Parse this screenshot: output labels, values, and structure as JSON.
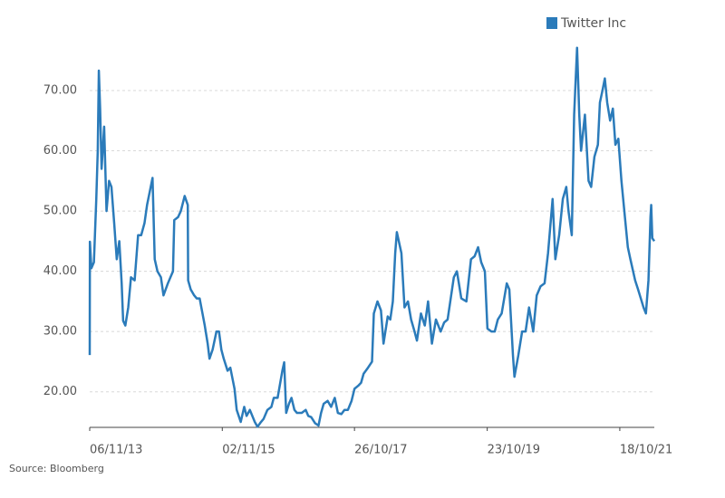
{
  "chart_data": {
    "type": "line",
    "source": "Source: Bloomberg",
    "legend": "upper right",
    "grid": true,
    "xlim": [
      "06/11/13",
      "25/04/22"
    ],
    "xticks": [
      "06/11/13",
      "02/11/15",
      "26/10/17",
      "23/10/19",
      "18/10/21"
    ],
    "ylim": [
      14.1,
      80
    ],
    "yticks": [
      {
        "value": 20,
        "label": "20.00"
      },
      {
        "value": 30,
        "label": "30.00"
      },
      {
        "value": 40,
        "label": "40.00"
      },
      {
        "value": 50,
        "label": "50.00"
      },
      {
        "value": 60,
        "label": "60.00"
      },
      {
        "value": 70,
        "label": "70.00"
      }
    ],
    "x": [
      "06/11/13",
      "07/11/13",
      "15/11/13",
      "29/11/13",
      "12/12/13",
      "20/12/13",
      "26/12/13",
      "02/01/14",
      "10/01/14",
      "24/01/14",
      "06/02/14",
      "20/02/14",
      "05/03/14",
      "20/03/14",
      "03/04/14",
      "17/04/14",
      "30/04/14",
      "08/05/14",
      "20/05/14",
      "05/06/14",
      "20/06/14",
      "10/07/14",
      "29/07/14",
      "15/08/14",
      "02/09/14",
      "16/09/14",
      "06/10/14",
      "16/10/14",
      "28/10/14",
      "12/11/14",
      "01/12/14",
      "15/12/14",
      "08/01/15",
      "05/02/15",
      "12/02/15",
      "05/03/15",
      "20/03/15",
      "10/04/15",
      "27/04/15",
      "29/04/15",
      "13/05/15",
      "01/06/15",
      "15/06/15",
      "01/07/15",
      "29/07/15",
      "14/08/15",
      "24/08/15",
      "10/09/15",
      "01/10/15",
      "15/10/15",
      "28/10/15",
      "10/11/15",
      "01/12/15",
      "16/12/15",
      "08/01/16",
      "20/01/16",
      "11/02/16",
      "01/03/16",
      "14/03/16",
      "01/04/16",
      "28/04/16",
      "13/05/16",
      "01/06/16",
      "15/06/16",
      "06/07/16",
      "28/07/16",
      "10/08/16",
      "31/08/16",
      "26/09/16",
      "06/10/16",
      "17/10/16",
      "01/11/16",
      "15/11/16",
      "01/12/16",
      "15/12/16",
      "10/01/17",
      "01/02/17",
      "15/02/17",
      "03/03/17",
      "24/03/17",
      "12/04/17",
      "26/04/17",
      "10/05/17",
      "01/06/17",
      "20/06/17",
      "10/07/17",
      "27/07/17",
      "15/08/17",
      "01/09/17",
      "20/09/17",
      "10/10/17",
      "26/10/17",
      "15/11/17",
      "01/12/17",
      "15/12/17",
      "08/01/18",
      "30/01/18",
      "09/02/18",
      "01/03/18",
      "20/03/18",
      "03/04/18",
      "26/04/18",
      "10/05/18",
      "24/05/18",
      "06/06/18",
      "15/06/18",
      "10/07/18",
      "27/07/18",
      "15/08/18",
      "01/09/18",
      "20/09/18",
      "03/10/18",
      "25/10/18",
      "15/11/18",
      "03/12/18",
      "24/12/18",
      "15/01/19",
      "10/02/19",
      "01/03/19",
      "20/03/19",
      "23/04/19",
      "10/05/19",
      "03/06/19",
      "01/07/19",
      "26/07/19",
      "15/08/19",
      "03/09/19",
      "20/09/19",
      "10/10/19",
      "24/10/19",
      "15/11/19",
      "03/12/19",
      "20/12/19",
      "10/01/20",
      "07/02/20",
      "21/02/20",
      "12/03/20",
      "20/03/20",
      "10/04/20",
      "01/05/20",
      "20/05/20",
      "08/06/20",
      "01/07/20",
      "20/07/20",
      "10/08/20",
      "01/09/20",
      "20/09/20",
      "15/10/20",
      "30/10/20",
      "20/11/20",
      "10/12/20",
      "29/12/20",
      "10/01/21",
      "28/01/21",
      "10/02/21",
      "26/02/21",
      "10/03/21",
      "20/03/21",
      "10/04/21",
      "30/04/21",
      "14/05/21",
      "01/06/21",
      "20/06/21",
      "01/07/21",
      "15/07/21",
      "28/07/21",
      "10/08/21",
      "26/08/21",
      "10/09/21",
      "24/09/21",
      "10/10/21",
      "27/10/21",
      "15/11/21",
      "01/12/21",
      "15/12/21",
      "10/01/22",
      "26/01/22",
      "10/02/22",
      "25/02/22",
      "10/03/22",
      "24/03/22",
      "04/04/22",
      "08/04/22",
      "14/04/22",
      "25/04/22"
    ],
    "series": [
      {
        "name": "Twitter Inc",
        "color": "#2b7bba",
        "values": [
          26.1,
          44.9,
          40.5,
          41.5,
          52,
          60,
          73.3,
          67,
          57,
          64,
          50,
          55,
          54,
          48,
          42,
          45,
          38,
          31.8,
          31,
          34,
          39,
          38.5,
          46,
          46,
          48,
          51,
          54,
          55.5,
          42,
          40,
          39,
          36,
          38,
          40,
          48.5,
          49,
          50,
          52.5,
          51,
          38.5,
          37,
          36,
          35.5,
          35.5,
          31,
          28,
          25.5,
          27,
          30,
          30,
          27,
          25.5,
          23.5,
          24,
          20.5,
          17,
          15,
          17.5,
          16,
          17,
          15,
          14.2,
          15,
          15.5,
          17,
          17.5,
          19,
          19,
          23.5,
          24.9,
          16.5,
          18,
          19,
          17,
          16.5,
          16.5,
          17,
          16,
          15.8,
          14.8,
          14.4,
          16.5,
          18,
          18.5,
          17.5,
          19,
          16.5,
          16.3,
          17,
          17,
          18.5,
          20.5,
          21,
          21.5,
          23,
          24,
          25,
          33,
          35,
          33.5,
          28,
          32.5,
          32,
          35,
          43,
          46.5,
          43,
          34,
          35,
          32,
          30,
          28.5,
          33,
          31,
          35,
          28,
          32,
          30,
          31.5,
          32,
          39,
          40,
          35.5,
          35,
          42,
          42.5,
          44,
          41.5,
          40,
          30.5,
          30,
          30,
          32,
          33,
          38,
          37,
          26,
          22.5,
          26,
          30,
          30,
          34,
          30,
          36,
          37.5,
          38,
          43,
          52,
          42,
          46,
          52,
          54,
          50,
          46,
          66,
          77.1,
          66,
          60,
          66,
          55,
          54,
          59,
          61,
          68,
          70,
          72,
          68,
          65,
          67,
          61,
          62,
          55,
          49,
          44,
          42,
          38.5,
          37,
          35.5,
          34,
          33,
          38.5,
          49,
          51,
          45.5,
          45
        ]
      }
    ]
  }
}
